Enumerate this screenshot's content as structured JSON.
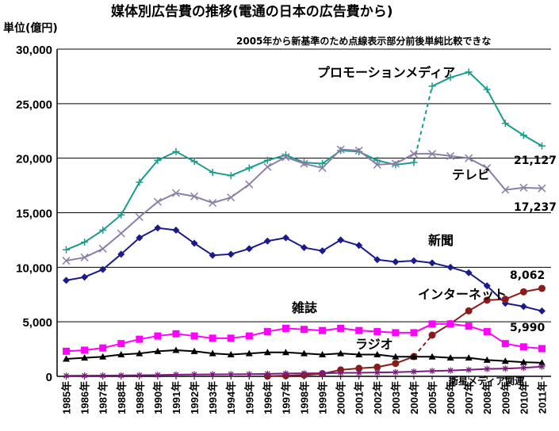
{
  "chart_data": {
    "type": "line",
    "title": "媒体別広告費の推移(電通の日本の広告費から)",
    "ylabel": "単位(億円)",
    "note": "2005年から新基準のため点線表示部分前後単純比較できな",
    "ylim": [
      0,
      30000
    ],
    "yticks": [
      "0",
      "5,000",
      "10,000",
      "15,000",
      "20,000",
      "25,000",
      "30,000"
    ],
    "categories": [
      "1985年",
      "1986年",
      "1987年",
      "1988年",
      "1989年",
      "1990年",
      "1991年",
      "1992年",
      "1993年",
      "1994年",
      "1995年",
      "1996年",
      "1997年",
      "1998年",
      "1999年",
      "2000年",
      "2001年",
      "2002年",
      "2003年",
      "2004年",
      "2005年",
      "2006年",
      "2007年",
      "2008年",
      "2009年",
      "2010年",
      "2011年"
    ],
    "grid": true,
    "series": [
      {
        "name": "プロモーションメディア",
        "color": "#1a9c8c",
        "marker": "plus",
        "values": [
          11600,
          12300,
          13400,
          14800,
          17800,
          19800,
          20600,
          19700,
          18700,
          18400,
          19100,
          19800,
          20300,
          19600,
          19500,
          20700,
          20600,
          19800,
          19400,
          19600,
          26600,
          27400,
          27900,
          26300,
          23200,
          22100,
          21127
        ],
        "dashed_segment": [
          19,
          20
        ]
      },
      {
        "name": "テレビ",
        "color": "#8b7fa8",
        "marker": "x",
        "values": [
          10600,
          10900,
          11700,
          13100,
          14600,
          16000,
          16800,
          16500,
          15900,
          16400,
          17600,
          19200,
          20100,
          19500,
          19100,
          20800,
          20700,
          19400,
          19500,
          20400,
          20400,
          20200,
          20000,
          19100,
          17100,
          17300,
          17237
        ]
      },
      {
        "name": "新聞",
        "color": "#1a1a8c",
        "marker": "diamond",
        "values": [
          8800,
          9100,
          9800,
          11200,
          12700,
          13600,
          13400,
          12200,
          11100,
          11200,
          11700,
          12400,
          12700,
          11800,
          11500,
          12500,
          12000,
          10700,
          10500,
          10600,
          10400,
          10000,
          9500,
          8300,
          6700,
          6400,
          5990
        ]
      },
      {
        "name": "インターネット",
        "color": "#8b1a1a",
        "marker": "circle",
        "values": [
          null,
          null,
          null,
          null,
          null,
          null,
          null,
          null,
          null,
          null,
          null,
          16,
          60,
          114,
          241,
          590,
          735,
          845,
          1183,
          1814,
          3777,
          4826,
          6003,
          6983,
          7069,
          7747,
          8062
        ],
        "dashed_segment": [
          19,
          20
        ]
      },
      {
        "name": "雑誌",
        "color": "#ff00ff",
        "marker": "square",
        "values": [
          2300,
          2400,
          2600,
          3000,
          3400,
          3700,
          3900,
          3700,
          3500,
          3500,
          3700,
          4100,
          4400,
          4300,
          4200,
          4400,
          4200,
          4100,
          4000,
          4000,
          4800,
          4800,
          4600,
          4100,
          3000,
          2700,
          2542
        ]
      },
      {
        "name": "ラジオ",
        "color": "#000000",
        "marker": "triangle",
        "values": [
          1600,
          1700,
          1800,
          2000,
          2100,
          2300,
          2400,
          2300,
          2100,
          2000,
          2100,
          2200,
          2200,
          2100,
          2000,
          2100,
          2000,
          2000,
          1800,
          1800,
          1800,
          1700,
          1700,
          1500,
          1400,
          1300,
          1247
        ]
      },
      {
        "name": "衛星メディア関連",
        "color": "#7a1a7a",
        "marker": "star",
        "values": [
          50,
          60,
          70,
          80,
          100,
          120,
          150,
          170,
          180,
          190,
          200,
          230,
          260,
          270,
          280,
          320,
          330,
          350,
          380,
          430,
          490,
          540,
          600,
          680,
          710,
          780,
          891
        ]
      }
    ],
    "value_labels": [
      {
        "series": 0,
        "text": "21,127"
      },
      {
        "series": 1,
        "text": "17,237"
      },
      {
        "series": 3,
        "text": "8,062"
      },
      {
        "series": 2,
        "text": "5,990"
      }
    ]
  }
}
